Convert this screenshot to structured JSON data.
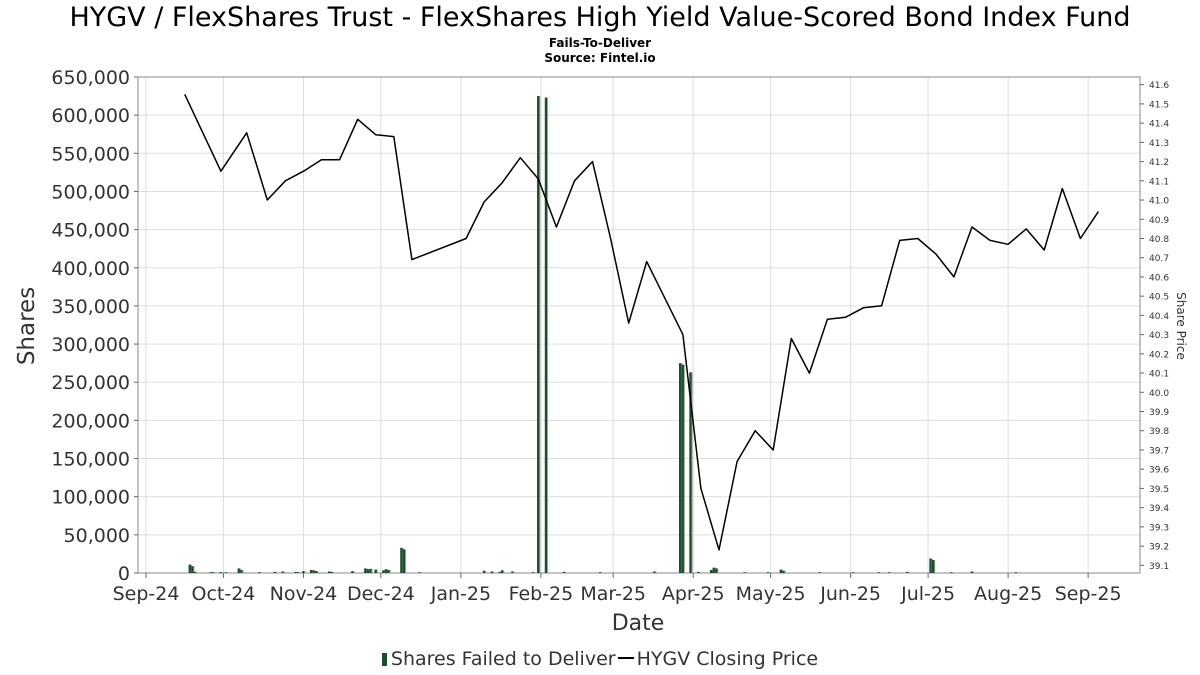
{
  "chart_data": {
    "type": "bar",
    "title": "HYGV / FlexShares Trust - FlexShares High Yield Value-Scored Bond Index Fund",
    "subtitle_lines": [
      "Fails-To-Deliver",
      "Source: Fintel.io"
    ],
    "xlabel": "Date",
    "ylabel": "Shares",
    "y2label": "Share Price",
    "ylim": [
      0,
      650000
    ],
    "y2lim": [
      39.06,
      41.64
    ],
    "xlim": [
      "2024-09-01",
      "2025-09-18"
    ],
    "grid": true,
    "legend_position": "bottom-center",
    "x_tick_labels": [
      {
        "date": "2024-09-01",
        "label": "Sep-24"
      },
      {
        "date": "2024-10-01",
        "label": "Oct-24"
      },
      {
        "date": "2024-11-01",
        "label": "Nov-24"
      },
      {
        "date": "2024-12-01",
        "label": "Dec-24"
      },
      {
        "date": "2025-01-01",
        "label": "Jan-25"
      },
      {
        "date": "2025-02-01",
        "label": "Feb-25"
      },
      {
        "date": "2025-03-01",
        "label": "Mar-25"
      },
      {
        "date": "2025-04-01",
        "label": "Apr-25"
      },
      {
        "date": "2025-05-01",
        "label": "May-25"
      },
      {
        "date": "2025-06-01",
        "label": "Jun-25"
      },
      {
        "date": "2025-07-01",
        "label": "Jul-25"
      },
      {
        "date": "2025-08-01",
        "label": "Aug-25"
      },
      {
        "date": "2025-09-01",
        "label": "Sep-25"
      }
    ],
    "y_tick_labels": [
      "0",
      "50,000",
      "100,000",
      "150,000",
      "200,000",
      "250,000",
      "300,000",
      "350,000",
      "400,000",
      "450,000",
      "500,000",
      "550,000",
      "600,000",
      "650,000"
    ],
    "y_tick_values": [
      0,
      50000,
      100000,
      150000,
      200000,
      250000,
      300000,
      350000,
      400000,
      450000,
      500000,
      550000,
      600000,
      650000
    ],
    "y2_tick_labels": [
      "39.1",
      "39.2",
      "39.3",
      "39.4",
      "39.5",
      "39.6",
      "39.7",
      "39.8",
      "39.9",
      "40.0",
      "40.1",
      "40.2",
      "40.3",
      "40.4",
      "40.5",
      "40.6",
      "40.7",
      "40.8",
      "40.9",
      "41.0",
      "41.1",
      "41.2",
      "41.3",
      "41.4",
      "41.5",
      "41.6"
    ],
    "y2_tick_values": [
      39.1,
      39.2,
      39.3,
      39.4,
      39.5,
      39.6,
      39.7,
      39.8,
      39.9,
      40.0,
      40.1,
      40.2,
      40.3,
      40.4,
      40.5,
      40.6,
      40.7,
      40.8,
      40.9,
      41.0,
      41.1,
      41.2,
      41.3,
      41.4,
      41.5,
      41.6
    ],
    "series": [
      {
        "name": "Shares Failed to Deliver",
        "kind": "bar",
        "color": "#1e4d2b",
        "points": [
          {
            "date": "2024-09-18",
            "value": 11000
          },
          {
            "date": "2024-09-19",
            "value": 9000
          },
          {
            "date": "2024-09-20",
            "value": 1500
          },
          {
            "date": "2024-09-26",
            "value": 1000
          },
          {
            "date": "2024-09-27",
            "value": 800
          },
          {
            "date": "2024-09-30",
            "value": 1200
          },
          {
            "date": "2024-10-02",
            "value": 1000
          },
          {
            "date": "2024-10-07",
            "value": 6000
          },
          {
            "date": "2024-10-08",
            "value": 4000
          },
          {
            "date": "2024-10-15",
            "value": 1200
          },
          {
            "date": "2024-10-21",
            "value": 1500
          },
          {
            "date": "2024-10-24",
            "value": 2000
          },
          {
            "date": "2024-10-29",
            "value": 1500
          },
          {
            "date": "2024-10-30",
            "value": 1000
          },
          {
            "date": "2024-11-01",
            "value": 2500
          },
          {
            "date": "2024-11-04",
            "value": 4000
          },
          {
            "date": "2024-11-05",
            "value": 3500
          },
          {
            "date": "2024-11-06",
            "value": 2500
          },
          {
            "date": "2024-11-11",
            "value": 2000
          },
          {
            "date": "2024-11-12",
            "value": 1500
          },
          {
            "date": "2024-11-20",
            "value": 2500
          },
          {
            "date": "2024-11-25",
            "value": 6000
          },
          {
            "date": "2024-11-26",
            "value": 5000
          },
          {
            "date": "2024-11-27",
            "value": 5500
          },
          {
            "date": "2024-11-29",
            "value": 4500
          },
          {
            "date": "2024-12-02",
            "value": 3500
          },
          {
            "date": "2024-12-03",
            "value": 5000
          },
          {
            "date": "2024-12-04",
            "value": 4000
          },
          {
            "date": "2024-12-09",
            "value": 33000
          },
          {
            "date": "2024-12-10",
            "value": 31000
          },
          {
            "date": "2024-12-16",
            "value": 1000
          },
          {
            "date": "2025-01-10",
            "value": 3000
          },
          {
            "date": "2025-01-13",
            "value": 2000
          },
          {
            "date": "2025-01-16",
            "value": 1500
          },
          {
            "date": "2025-01-17",
            "value": 3500
          },
          {
            "date": "2025-01-21",
            "value": 2000
          },
          {
            "date": "2025-01-29",
            "value": 1000
          },
          {
            "date": "2025-01-31",
            "value": 625000
          },
          {
            "date": "2025-02-03",
            "value": 623000
          },
          {
            "date": "2025-02-10",
            "value": 1500
          },
          {
            "date": "2025-02-24",
            "value": 1000
          },
          {
            "date": "2025-03-17",
            "value": 2000
          },
          {
            "date": "2025-03-27",
            "value": 275000
          },
          {
            "date": "2025-03-28",
            "value": 273000
          },
          {
            "date": "2025-03-31",
            "value": 263000
          },
          {
            "date": "2025-04-03",
            "value": 1500
          },
          {
            "date": "2025-04-08",
            "value": 4000
          },
          {
            "date": "2025-04-09",
            "value": 7000
          },
          {
            "date": "2025-04-10",
            "value": 6000
          },
          {
            "date": "2025-04-21",
            "value": 1000
          },
          {
            "date": "2025-04-30",
            "value": 1000
          },
          {
            "date": "2025-05-05",
            "value": 4500
          },
          {
            "date": "2025-05-06",
            "value": 3000
          },
          {
            "date": "2025-05-20",
            "value": 800
          },
          {
            "date": "2025-06-02",
            "value": 1000
          },
          {
            "date": "2025-06-12",
            "value": 800
          },
          {
            "date": "2025-06-16",
            "value": 700
          },
          {
            "date": "2025-06-23",
            "value": 1500
          },
          {
            "date": "2025-07-02",
            "value": 19000
          },
          {
            "date": "2025-07-03",
            "value": 17000
          },
          {
            "date": "2025-07-10",
            "value": 1000
          },
          {
            "date": "2025-07-18",
            "value": 2000
          },
          {
            "date": "2025-08-04",
            "value": 1000
          }
        ]
      },
      {
        "name": "HYGV Closing Price",
        "kind": "line",
        "color": "#000000",
        "points": [
          {
            "date": "2024-09-16",
            "value": 41.55
          },
          {
            "date": "2024-09-30",
            "value": 41.15
          },
          {
            "date": "2024-10-10",
            "value": 41.35
          },
          {
            "date": "2024-10-18",
            "value": 41.0
          },
          {
            "date": "2024-10-25",
            "value": 41.1
          },
          {
            "date": "2024-11-01",
            "value": 41.15
          },
          {
            "date": "2024-11-08",
            "value": 41.21
          },
          {
            "date": "2024-11-15",
            "value": 41.21
          },
          {
            "date": "2024-11-22",
            "value": 41.42
          },
          {
            "date": "2024-11-29",
            "value": 41.34
          },
          {
            "date": "2024-12-06",
            "value": 41.33
          },
          {
            "date": "2024-12-13",
            "value": 40.69
          },
          {
            "date": "2025-01-03",
            "value": 40.8
          },
          {
            "date": "2025-01-10",
            "value": 40.99
          },
          {
            "date": "2025-01-17",
            "value": 41.09
          },
          {
            "date": "2025-01-24",
            "value": 41.22
          },
          {
            "date": "2025-01-31",
            "value": 41.11
          },
          {
            "date": "2025-02-07",
            "value": 40.86
          },
          {
            "date": "2025-02-14",
            "value": 41.1
          },
          {
            "date": "2025-02-21",
            "value": 41.2
          },
          {
            "date": "2025-02-28",
            "value": 40.8
          },
          {
            "date": "2025-03-07",
            "value": 40.36
          },
          {
            "date": "2025-03-14",
            "value": 40.68
          },
          {
            "date": "2025-03-28",
            "value": 40.3
          },
          {
            "date": "2025-04-04",
            "value": 39.5
          },
          {
            "date": "2025-04-11",
            "value": 39.18
          },
          {
            "date": "2025-04-18",
            "value": 39.64
          },
          {
            "date": "2025-04-25",
            "value": 39.8
          },
          {
            "date": "2025-05-02",
            "value": 39.7
          },
          {
            "date": "2025-05-09",
            "value": 40.28
          },
          {
            "date": "2025-05-16",
            "value": 40.1
          },
          {
            "date": "2025-05-23",
            "value": 40.38
          },
          {
            "date": "2025-05-30",
            "value": 40.39
          },
          {
            "date": "2025-06-06",
            "value": 40.44
          },
          {
            "date": "2025-06-13",
            "value": 40.45
          },
          {
            "date": "2025-06-20",
            "value": 40.79
          },
          {
            "date": "2025-06-27",
            "value": 40.8
          },
          {
            "date": "2025-07-04",
            "value": 40.72
          },
          {
            "date": "2025-07-11",
            "value": 40.6
          },
          {
            "date": "2025-07-18",
            "value": 40.86
          },
          {
            "date": "2025-07-25",
            "value": 40.79
          },
          {
            "date": "2025-08-01",
            "value": 40.77
          },
          {
            "date": "2025-08-08",
            "value": 40.85
          },
          {
            "date": "2025-08-15",
            "value": 40.74
          },
          {
            "date": "2025-08-22",
            "value": 41.06
          },
          {
            "date": "2025-08-29",
            "value": 40.8
          },
          {
            "date": "2025-09-05",
            "value": 40.94
          }
        ]
      }
    ]
  }
}
